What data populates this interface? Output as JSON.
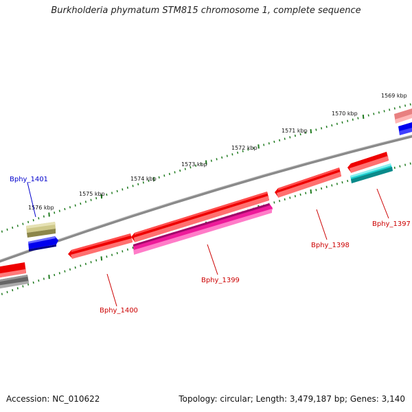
{
  "title": "Burkholderia phymatum STM815 chromosome 1, complete sequence",
  "accession": "Accession: NC_010622",
  "summary": "Topology: circular; Length: 3,479,187 bp; Genes: 3,140",
  "scale_labels": [
    "1569 kbp",
    "1570 kbp",
    "1571 kbp",
    "1572 kbp",
    "1573 kbp",
    "1574 kbp",
    "1575 kbp",
    "1576 kbp"
  ],
  "gene_labels": [
    {
      "name": "Bphy_1401",
      "color": "#0000cc"
    },
    {
      "name": "Bphy_1400",
      "color": "#cc0000"
    },
    {
      "name": "Bphy_1399",
      "color": "#cc0000"
    },
    {
      "name": "Bphy_1398",
      "color": "#cc0000"
    },
    {
      "name": "Bphy_1397",
      "color": "#cc0000"
    }
  ],
  "colors": {
    "backbone": "#8a8a8a",
    "scale_ticks": "#1e7a1e",
    "red": "#ee0000",
    "magenta": "#ee1a9a",
    "cyan": "#1ccfcf",
    "blue": "#0000ee",
    "olive": "#b5ae6a",
    "gray": "#666666",
    "pink": "#e88080"
  }
}
